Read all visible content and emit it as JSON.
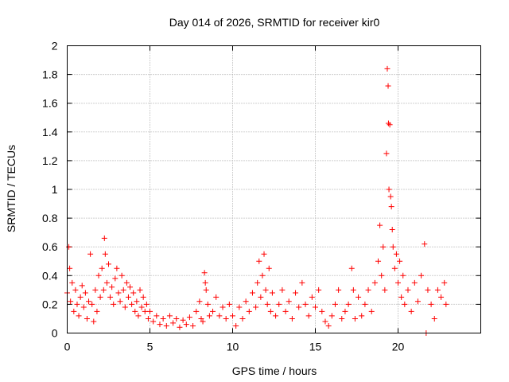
{
  "chart_data": {
    "type": "scatter",
    "title": "Day 014 of 2026, SRMTID for receiver kir0",
    "xlabel": "GPS time / hours",
    "ylabel": "SRMTID / TECUs",
    "xlim": [
      0,
      25
    ],
    "ylim": [
      0,
      2
    ],
    "xticks": [
      "0",
      "5",
      "10",
      "15",
      "20"
    ],
    "xtick_values": [
      0,
      5,
      10,
      15,
      20
    ],
    "yticks": [
      "0",
      "0.2",
      "0.4",
      "0.6",
      "0.8",
      "1",
      "1.2",
      "1.4",
      "1.6",
      "1.8",
      "2"
    ],
    "ytick_values": [
      0,
      0.2,
      0.4,
      0.6,
      0.8,
      1.0,
      1.2,
      1.4,
      1.6,
      1.8,
      2.0
    ],
    "grid": true,
    "marker": "+",
    "color": "#ff0000",
    "series": [
      {
        "name": "SRMTID",
        "points": [
          [
            0.0,
            0.28
          ],
          [
            0.1,
            0.6
          ],
          [
            0.15,
            0.45
          ],
          [
            0.2,
            0.22
          ],
          [
            0.3,
            0.35
          ],
          [
            0.4,
            0.15
          ],
          [
            0.5,
            0.3
          ],
          [
            0.6,
            0.2
          ],
          [
            0.7,
            0.12
          ],
          [
            0.8,
            0.25
          ],
          [
            0.9,
            0.33
          ],
          [
            1.0,
            0.18
          ],
          [
            1.1,
            0.28
          ],
          [
            1.2,
            0.1
          ],
          [
            1.3,
            0.22
          ],
          [
            1.4,
            0.55
          ],
          [
            1.5,
            0.2
          ],
          [
            1.6,
            0.08
          ],
          [
            1.7,
            0.3
          ],
          [
            1.8,
            0.15
          ],
          [
            1.9,
            0.4
          ],
          [
            2.0,
            0.25
          ],
          [
            2.1,
            0.45
          ],
          [
            2.2,
            0.3
          ],
          [
            2.25,
            0.66
          ],
          [
            2.3,
            0.55
          ],
          [
            2.4,
            0.35
          ],
          [
            2.5,
            0.48
          ],
          [
            2.6,
            0.25
          ],
          [
            2.7,
            0.32
          ],
          [
            2.8,
            0.2
          ],
          [
            2.9,
            0.38
          ],
          [
            3.0,
            0.45
          ],
          [
            3.1,
            0.28
          ],
          [
            3.2,
            0.22
          ],
          [
            3.3,
            0.4
          ],
          [
            3.4,
            0.3
          ],
          [
            3.5,
            0.18
          ],
          [
            3.6,
            0.35
          ],
          [
            3.7,
            0.25
          ],
          [
            3.8,
            0.32
          ],
          [
            3.9,
            0.2
          ],
          [
            4.0,
            0.28
          ],
          [
            4.1,
            0.15
          ],
          [
            4.2,
            0.22
          ],
          [
            4.3,
            0.12
          ],
          [
            4.4,
            0.3
          ],
          [
            4.5,
            0.18
          ],
          [
            4.6,
            0.25
          ],
          [
            4.7,
            0.15
          ],
          [
            4.8,
            0.2
          ],
          [
            4.9,
            0.1
          ],
          [
            5.0,
            0.15
          ],
          [
            5.2,
            0.08
          ],
          [
            5.4,
            0.12
          ],
          [
            5.6,
            0.06
          ],
          [
            5.8,
            0.1
          ],
          [
            6.0,
            0.05
          ],
          [
            6.2,
            0.12
          ],
          [
            6.4,
            0.07
          ],
          [
            6.6,
            0.1
          ],
          [
            6.8,
            0.04
          ],
          [
            7.0,
            0.09
          ],
          [
            7.2,
            0.06
          ],
          [
            7.4,
            0.11
          ],
          [
            7.6,
            0.05
          ],
          [
            7.8,
            0.15
          ],
          [
            8.0,
            0.22
          ],
          [
            8.1,
            0.1
          ],
          [
            8.2,
            0.08
          ],
          [
            8.3,
            0.42
          ],
          [
            8.35,
            0.35
          ],
          [
            8.4,
            0.3
          ],
          [
            8.5,
            0.2
          ],
          [
            8.6,
            0.12
          ],
          [
            8.8,
            0.15
          ],
          [
            9.0,
            0.25
          ],
          [
            9.2,
            0.12
          ],
          [
            9.4,
            0.18
          ],
          [
            9.6,
            0.1
          ],
          [
            9.8,
            0.2
          ],
          [
            10.0,
            0.12
          ],
          [
            10.2,
            0.05
          ],
          [
            10.4,
            0.18
          ],
          [
            10.6,
            0.1
          ],
          [
            10.8,
            0.22
          ],
          [
            11.0,
            0.15
          ],
          [
            11.2,
            0.28
          ],
          [
            11.4,
            0.18
          ],
          [
            11.5,
            0.35
          ],
          [
            11.6,
            0.5
          ],
          [
            11.7,
            0.25
          ],
          [
            11.8,
            0.4
          ],
          [
            11.9,
            0.55
          ],
          [
            12.0,
            0.3
          ],
          [
            12.1,
            0.2
          ],
          [
            12.2,
            0.45
          ],
          [
            12.3,
            0.15
          ],
          [
            12.4,
            0.28
          ],
          [
            12.6,
            0.12
          ],
          [
            12.8,
            0.2
          ],
          [
            13.0,
            0.3
          ],
          [
            13.2,
            0.15
          ],
          [
            13.4,
            0.22
          ],
          [
            13.6,
            0.1
          ],
          [
            13.8,
            0.28
          ],
          [
            14.0,
            0.18
          ],
          [
            14.2,
            0.35
          ],
          [
            14.4,
            0.2
          ],
          [
            14.6,
            0.12
          ],
          [
            14.8,
            0.25
          ],
          [
            15.0,
            0.18
          ],
          [
            15.2,
            0.3
          ],
          [
            15.4,
            0.15
          ],
          [
            15.6,
            0.08
          ],
          [
            15.8,
            0.05
          ],
          [
            16.0,
            0.12
          ],
          [
            16.2,
            0.2
          ],
          [
            16.4,
            0.3
          ],
          [
            16.6,
            0.1
          ],
          [
            16.8,
            0.15
          ],
          [
            17.0,
            0.2
          ],
          [
            17.2,
            0.45
          ],
          [
            17.3,
            0.3
          ],
          [
            17.4,
            0.1
          ],
          [
            17.6,
            0.25
          ],
          [
            17.8,
            0.12
          ],
          [
            18.0,
            0.2
          ],
          [
            18.2,
            0.3
          ],
          [
            18.4,
            0.15
          ],
          [
            18.6,
            0.35
          ],
          [
            18.8,
            0.5
          ],
          [
            18.9,
            0.75
          ],
          [
            19.0,
            0.4
          ],
          [
            19.1,
            0.6
          ],
          [
            19.2,
            0.3
          ],
          [
            19.3,
            1.25
          ],
          [
            19.35,
            1.84
          ],
          [
            19.4,
            1.72
          ],
          [
            19.42,
            1.46
          ],
          [
            19.45,
            1.0
          ],
          [
            19.5,
            1.45
          ],
          [
            19.55,
            0.95
          ],
          [
            19.6,
            0.88
          ],
          [
            19.65,
            0.72
          ],
          [
            19.7,
            0.6
          ],
          [
            19.8,
            0.45
          ],
          [
            19.9,
            0.55
          ],
          [
            20.0,
            0.35
          ],
          [
            20.1,
            0.5
          ],
          [
            20.2,
            0.25
          ],
          [
            20.3,
            0.4
          ],
          [
            20.4,
            0.2
          ],
          [
            20.6,
            0.3
          ],
          [
            20.8,
            0.15
          ],
          [
            21.0,
            0.35
          ],
          [
            21.2,
            0.22
          ],
          [
            21.4,
            0.4
          ],
          [
            21.6,
            0.62
          ],
          [
            21.7,
            0.0
          ],
          [
            21.8,
            0.3
          ],
          [
            22.0,
            0.2
          ],
          [
            22.2,
            0.1
          ],
          [
            22.4,
            0.3
          ],
          [
            22.6,
            0.25
          ],
          [
            22.8,
            0.35
          ],
          [
            22.9,
            0.2
          ]
        ]
      }
    ]
  }
}
